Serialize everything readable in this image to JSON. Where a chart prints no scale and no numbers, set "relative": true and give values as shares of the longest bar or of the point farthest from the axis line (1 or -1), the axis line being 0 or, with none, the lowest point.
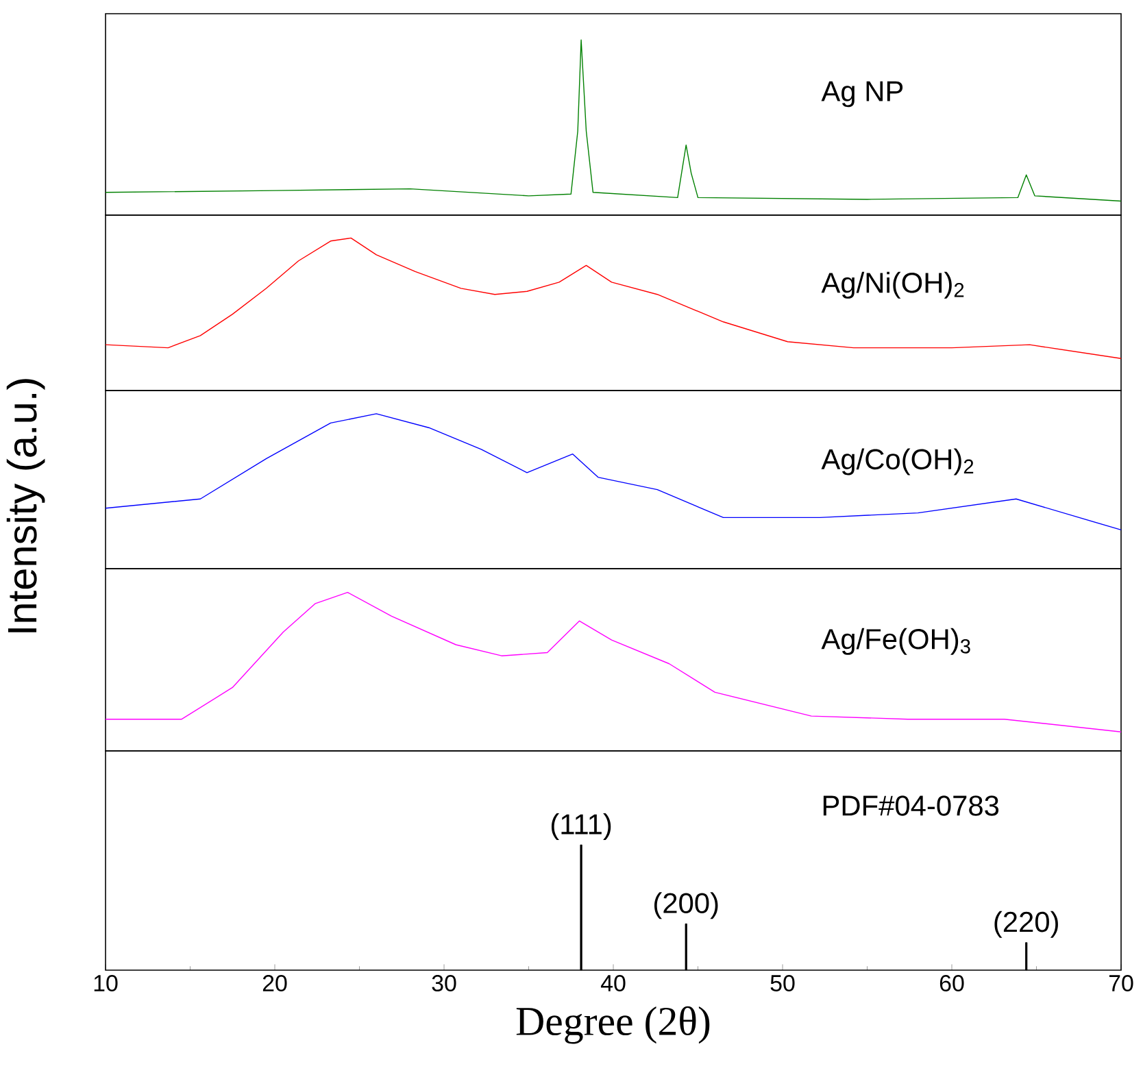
{
  "chart_data": [
    {
      "type": "line",
      "relative": true,
      "tick_labels": false,
      "xlim": [
        10,
        70
      ],
      "x": [
        10,
        20,
        28,
        35,
        37.5,
        37.9,
        38.1,
        38.4,
        38.8,
        43.8,
        44.1,
        44.3,
        44.6,
        45.0,
        55,
        63.9,
        64.4,
        64.9,
        70
      ],
      "series": [
        {
          "name": "Ag NP",
          "color": "#008000",
          "values": [
            0.13,
            0.14,
            0.15,
            0.11,
            0.12,
            0.48,
            1.0,
            0.48,
            0.13,
            0.1,
            0.28,
            0.4,
            0.24,
            0.1,
            0.09,
            0.1,
            0.23,
            0.11,
            0.08
          ]
        }
      ]
    },
    {
      "type": "line",
      "relative": true,
      "tick_labels": false,
      "xlim": [
        10,
        70
      ],
      "x": [
        10,
        13.7,
        15.6,
        17.5,
        19.5,
        21.4,
        23.3,
        24.5,
        26.0,
        28.3,
        31.0,
        33.0,
        34.9,
        36.8,
        38.4,
        39.9,
        42.6,
        46.5,
        50.3,
        54.2,
        60.0,
        64.6,
        70
      ],
      "series": [
        {
          "name": "Ag/Ni(OH)$_{2}$",
          "color": "#ff0000",
          "values": [
            0.3,
            0.28,
            0.36,
            0.5,
            0.67,
            0.85,
            0.98,
            1.0,
            0.89,
            0.78,
            0.67,
            0.63,
            0.65,
            0.71,
            0.82,
            0.71,
            0.63,
            0.45,
            0.32,
            0.28,
            0.28,
            0.3,
            0.21
          ]
        }
      ]
    },
    {
      "type": "line",
      "relative": true,
      "tick_labels": false,
      "xlim": [
        10,
        70
      ],
      "ylabel": "Intensity (a.u.)",
      "x": [
        10,
        15.6,
        19.5,
        23.3,
        26.0,
        29.1,
        32.2,
        34.9,
        37.6,
        39.1,
        42.6,
        46.5,
        52.2,
        58.0,
        63.8,
        70
      ],
      "series": [
        {
          "name": "Ag/Co(OH)$_{2}$",
          "color": "#0000ff",
          "values": [
            0.39,
            0.45,
            0.71,
            0.94,
            1.0,
            0.91,
            0.77,
            0.62,
            0.74,
            0.59,
            0.51,
            0.33,
            0.33,
            0.36,
            0.45,
            0.25
          ]
        }
      ]
    },
    {
      "type": "line",
      "relative": true,
      "tick_labels": false,
      "xlim": [
        10,
        70
      ],
      "x": [
        10,
        14.5,
        17.5,
        20.5,
        22.4,
        24.3,
        26.9,
        30.7,
        33.4,
        36.1,
        38.0,
        39.9,
        43.3,
        46.0,
        51.7,
        57.4,
        63.1,
        70
      ],
      "series": [
        {
          "name": "Ag/Fe(OH)$_{3}$",
          "color": "#ff00ff",
          "values": [
            0.2,
            0.2,
            0.4,
            0.75,
            0.93,
            1.0,
            0.85,
            0.67,
            0.6,
            0.62,
            0.82,
            0.7,
            0.55,
            0.37,
            0.22,
            0.2,
            0.2,
            0.12
          ]
        }
      ]
    },
    {
      "type": "bar",
      "relative": true,
      "tick_labels": "x",
      "xlim": [
        10,
        70
      ],
      "xticks": [
        10,
        20,
        30,
        40,
        50,
        60,
        70
      ],
      "xlabel": "Degree (2θ)",
      "x": [
        38.1,
        44.3,
        64.4
      ],
      "values": [
        1.0,
        0.37,
        0.22
      ],
      "color": "#000000",
      "annotations": [
        "PDF#04-0783",
        {
          "text": "(111)",
          "x": 38.1,
          "y": 1.0
        },
        {
          "text": "(200)",
          "x": 44.3,
          "y": 0.37
        },
        {
          "text": "(220)",
          "x": 64.4,
          "y": 0.22
        }
      ]
    }
  ]
}
